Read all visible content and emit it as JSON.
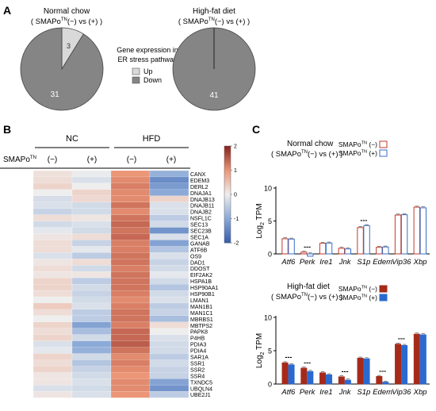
{
  "panel_labels": {
    "a": "A",
    "b": "B",
    "c": "C"
  },
  "colors": {
    "up": "#d9d9d9",
    "down": "#858585"
  },
  "pie_legend": {
    "title_line1": "Gene expression in",
    "title_line2": "ER stress pathway",
    "up": "Up",
    "down": "Down"
  },
  "heatmap_text": {
    "nc": "NC",
    "hfd": "HFD",
    "smapo": "SMAPo",
    "sup": "TN",
    "neg": "(−)",
    "pos": "(+)"
  },
  "bar_text": {
    "nc_title": "Normal chow",
    "hfd_title": "High-fat diet",
    "subtitle_pre": "( SMAPo",
    "subtitle_sup": "TN",
    "subtitle_post": "(−) vs (+) )",
    "ylabel_main": "Log",
    "ylabel_sub": "2",
    "ylabel_post": " TPM",
    "legend_neg": "SMAPo",
    "legend_sup": "TN",
    "legend_neg_post": " (−)",
    "legend_pos_post": " (+)",
    "sig": "---"
  },
  "chart_data": [
    {
      "type": "pie",
      "title_line1": "Normal chow",
      "title_pre": "( SMAPo",
      "title_sup": "TN",
      "title_post": "(−) vs (+) )",
      "slices": [
        {
          "name": "Up",
          "value": 3,
          "label": "3"
        },
        {
          "name": "Down",
          "value": 31,
          "label": "31"
        }
      ]
    },
    {
      "type": "pie",
      "title_line1": "High-fat diet",
      "title_pre": "( SMAPo",
      "title_sup": "TN",
      "title_post": "(−) vs (+) )",
      "slices": [
        {
          "name": "Up",
          "value": 0,
          "label": ""
        },
        {
          "name": "Down",
          "value": 41,
          "label": "41"
        }
      ]
    },
    {
      "type": "heatmap",
      "columns": [
        "NC (−)",
        "NC (+)",
        "HFD (−)",
        "HFD (+)"
      ],
      "rows": [
        "CANX",
        "EDEM3",
        "DERL2",
        "DNAJA1",
        "DNAJB13",
        "DNAJB11",
        "DNAJB2",
        "NSFL1C",
        "SEC13",
        "SEC23B",
        "SEC1A",
        "GANAB",
        "ATF6B",
        "OS9",
        "DAD1",
        "DDOST",
        "EIF2AK2",
        "HSPA1B",
        "HSP90AA1",
        "HSP90B1",
        "LMAN1",
        "MAN1B1",
        "MAN1C1",
        "MBRBS1",
        "MBTPS2",
        "PAPK8",
        "P4HB",
        "PDIA3",
        "PDIA4",
        "SAR1A",
        "SSR1",
        "SSR2",
        "SSR4",
        "TXNDC5",
        "UBQLN4",
        "UBE2J1"
      ],
      "values": [
        [
          0.15,
          -0.05,
          1.0,
          -0.9
        ],
        [
          0.2,
          -0.2,
          1.1,
          -1.4
        ],
        [
          0.3,
          0.0,
          1.2,
          -1.2
        ],
        [
          0.0,
          0.3,
          1.1,
          -1.0
        ],
        [
          -0.25,
          0.25,
          1.1,
          0.3
        ],
        [
          -0.2,
          -0.3,
          1.3,
          -0.2
        ],
        [
          -0.4,
          -0.3,
          1.1,
          -0.2
        ],
        [
          0.2,
          0.1,
          1.3,
          -0.5
        ],
        [
          -0.3,
          -0.2,
          1.4,
          -0.3
        ],
        [
          -0.1,
          -0.3,
          1.3,
          -1.3
        ],
        [
          0.1,
          0.2,
          1.4,
          -0.2
        ],
        [
          0.2,
          -0.4,
          1.2,
          -1.1
        ],
        [
          0.2,
          -0.1,
          1.2,
          -0.6
        ],
        [
          -0.2,
          -0.5,
          1.3,
          -0.2
        ],
        [
          0.1,
          0.2,
          1.3,
          -0.4
        ],
        [
          0.2,
          -0.3,
          1.2,
          -0.3
        ],
        [
          0.1,
          0.1,
          1.3,
          -0.1
        ],
        [
          0.3,
          -0.5,
          1.3,
          -0.3
        ],
        [
          0.3,
          -0.3,
          1.3,
          -0.6
        ],
        [
          0.2,
          -0.4,
          1.2,
          -0.3
        ],
        [
          0.0,
          -0.3,
          1.1,
          -0.2
        ],
        [
          0.4,
          -0.2,
          1.2,
          -0.5
        ],
        [
          0.2,
          -0.5,
          1.3,
          -0.4
        ],
        [
          0.0,
          -0.5,
          1.3,
          -0.7
        ],
        [
          0.3,
          -1.1,
          1.2,
          0.2
        ],
        [
          0.2,
          -0.7,
          1.4,
          0.0
        ],
        [
          0.3,
          -0.3,
          1.4,
          -0.2
        ],
        [
          -0.2,
          -1.0,
          1.5,
          -0.3
        ],
        [
          -0.1,
          -0.9,
          1.3,
          -0.3
        ],
        [
          0.3,
          -0.3,
          1.1,
          -0.5
        ],
        [
          0.2,
          -0.6,
          1.2,
          -0.3
        ],
        [
          0.3,
          -0.4,
          1.1,
          -0.4
        ],
        [
          0.1,
          -0.3,
          1.0,
          -0.4
        ],
        [
          0.1,
          -0.2,
          1.1,
          -1.1
        ],
        [
          -0.2,
          -0.3,
          1.1,
          -1.3
        ],
        [
          0.1,
          -0.2,
          1.0,
          -0.5
        ]
      ],
      "scale": {
        "min": -2,
        "max": 2,
        "ticks": [
          2,
          1,
          0,
          -1,
          -2
        ]
      }
    },
    {
      "type": "bar",
      "title": "Normal chow",
      "categories": [
        "Atf6",
        "Perk",
        "Ire1",
        "Jnk",
        "S1p",
        "Edem",
        "Vip36",
        "Xbp"
      ],
      "series": [
        {
          "name": "SMAPoTN (−)",
          "values": [
            2.3,
            0.25,
            1.6,
            0.85,
            4.0,
            1.0,
            5.9,
            7.1
          ]
        },
        {
          "name": "SMAPoTN (+)",
          "values": [
            2.25,
            -0.35,
            1.65,
            0.75,
            4.3,
            1.05,
            5.95,
            7.0
          ]
        }
      ],
      "significant": [
        "Perk",
        "S1p"
      ],
      "ylabel": "Log2 TPM",
      "ylim": [
        0,
        10
      ],
      "yticks": [
        0,
        5,
        10
      ]
    },
    {
      "type": "bar",
      "title": "High-fat diet",
      "categories": [
        "Atf6",
        "Perk",
        "Ire1",
        "Jnk",
        "S1p",
        "Edem",
        "Vip36",
        "Xbp"
      ],
      "series": [
        {
          "name": "SMAPoTN (−)",
          "values": [
            3.2,
            2.4,
            1.7,
            1.1,
            3.9,
            1.15,
            6.0,
            7.5
          ]
        },
        {
          "name": "SMAPoTN (+)",
          "values": [
            2.9,
            1.9,
            1.4,
            0.6,
            3.8,
            0.3,
            5.8,
            7.4
          ]
        }
      ],
      "significant": [
        "Atf6",
        "Perk",
        "Jnk",
        "Edem",
        "Vip36"
      ],
      "ylabel": "Log2 TPM",
      "ylim": [
        0,
        10
      ],
      "yticks": [
        0,
        5,
        10
      ]
    }
  ]
}
